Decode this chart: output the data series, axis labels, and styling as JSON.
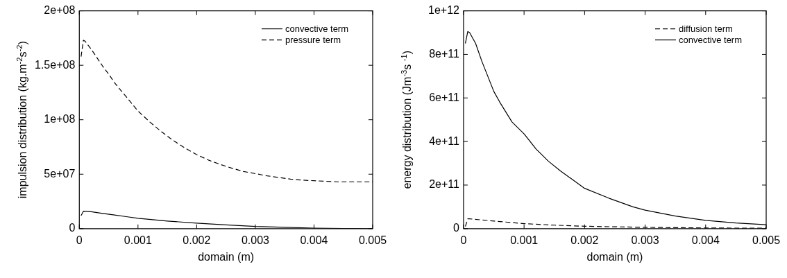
{
  "chart_data": [
    {
      "type": "line",
      "xlabel": "domain (m)",
      "ylabel": "impulsion distribution (kg.m$^{-2}$s$^{-2}$)",
      "xlim": [
        0,
        0.005
      ],
      "xticks": [
        0,
        0.001,
        0.002,
        0.003,
        0.004,
        0.005
      ],
      "ylim": [
        0,
        200000000
      ],
      "yticks": [
        0,
        {
          "value": 50000000,
          "label": "5e+07"
        },
        {
          "value": 100000000,
          "label": "1e+08"
        },
        {
          "value": 150000000,
          "label": "1.5e+08"
        },
        {
          "value": 200000000,
          "label": "2e+08"
        }
      ],
      "grid": false,
      "legend": "top right",
      "marker": "none",
      "series": [
        {
          "name": "convective term",
          "color": "#000000",
          "line_style": "solid",
          "x": [
            3e-05,
            7e-05,
            0.0002,
            0.0004,
            0.0006,
            0.0008,
            0.001,
            0.0015,
            0.002,
            0.0025,
            0.003,
            0.0035,
            0.004,
            0.0045,
            0.005
          ],
          "values": [
            12000000,
            16000000,
            15500000,
            14000000,
            12500000,
            11000000,
            9500000,
            7000000,
            5000000,
            3500000,
            2000000,
            1200000,
            500000,
            200000,
            0
          ]
        },
        {
          "name": "pressure term",
          "color": "#000000",
          "line_style": "dashed",
          "x": [
            3e-05,
            7e-05,
            0.0001,
            0.0002,
            0.0003,
            0.0004,
            0.0005,
            0.0006,
            0.0008,
            0.001,
            0.0012,
            0.0014,
            0.0016,
            0.0018,
            0.002,
            0.0022,
            0.0024,
            0.0026,
            0.0028,
            0.003,
            0.0032,
            0.0034,
            0.0036,
            0.0038,
            0.004,
            0.0042,
            0.0044,
            0.0046,
            0.0048,
            0.005
          ],
          "values": [
            158000000,
            173000000,
            172000000,
            165000000,
            157000000,
            149000000,
            142000000,
            134000000,
            121000000,
            108000000,
            98000000,
            89000000,
            81000000,
            74000000,
            68000000,
            63000000,
            59000000,
            55500000,
            52500000,
            50500000,
            48500000,
            47000000,
            45500000,
            44500000,
            44000000,
            43500000,
            43000000,
            43000000,
            43000000,
            43000000
          ]
        }
      ]
    },
    {
      "type": "line",
      "xlabel": "domain (m)",
      "ylabel": "energy distribution (Jm$^{-3}$s $^{-1}$)",
      "xlim": [
        0,
        0.005
      ],
      "xticks": [
        0,
        0.001,
        0.002,
        0.003,
        0.004,
        0.005
      ],
      "ylim": [
        0,
        1000000000000
      ],
      "yticks": [
        0,
        {
          "value": 200000000000,
          "label": "2e+11"
        },
        {
          "value": 400000000000,
          "label": "4e+11"
        },
        {
          "value": 600000000000,
          "label": "6e+11"
        },
        {
          "value": 800000000000,
          "label": "8e+11"
        },
        {
          "value": 1000000000000,
          "label": "1e+12"
        }
      ],
      "grid": false,
      "legend": "top right",
      "marker": "none",
      "series": [
        {
          "name": "diffusion term",
          "color": "#000000",
          "line_style": "dashed",
          "x": [
            3e-05,
            7e-05,
            0.0001,
            0.0005,
            0.001,
            0.0015,
            0.002,
            0.003,
            0.004,
            0.005
          ],
          "values": [
            10000000000,
            45000000000,
            45000000000,
            35000000000,
            23000000000,
            16000000000,
            11000000000,
            6000000000,
            3000000000,
            2000000000
          ]
        },
        {
          "name": "convective term",
          "color": "#000000",
          "line_style": "solid",
          "x": [
            3e-05,
            7e-05,
            0.0001,
            0.0002,
            0.0003,
            0.0004,
            0.0005,
            0.0006,
            0.0008,
            0.001,
            0.0012,
            0.0014,
            0.0016,
            0.0018,
            0.002,
            0.0024,
            0.0028,
            0.003,
            0.0035,
            0.004,
            0.0045,
            0.005
          ],
          "values": [
            850000000000,
            905000000000,
            900000000000,
            850000000000,
            770000000000,
            700000000000,
            630000000000,
            580000000000,
            490000000000,
            435000000000,
            365000000000,
            310000000000,
            265000000000,
            225000000000,
            185000000000,
            140000000000,
            100000000000,
            85000000000,
            58000000000,
            38000000000,
            26000000000,
            18000000000
          ]
        }
      ]
    }
  ]
}
